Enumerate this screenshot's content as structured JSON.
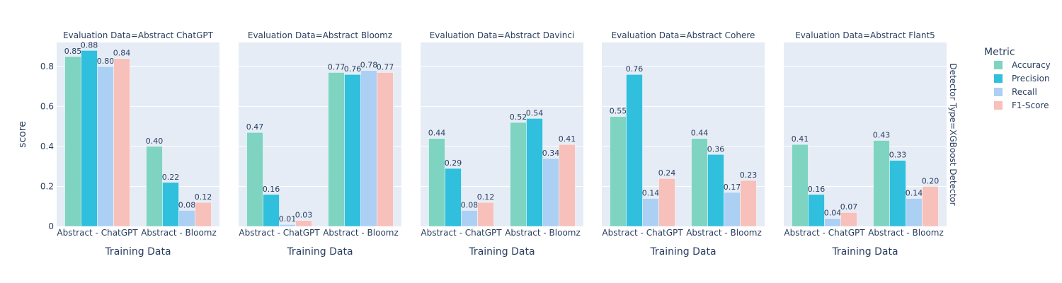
{
  "chart_data": {
    "type": "bar",
    "ylabel": "score",
    "xlabel": "Training Data",
    "ylim": [
      0,
      0.92
    ],
    "yticks": [
      0,
      0.2,
      0.4,
      0.6,
      0.8
    ],
    "ytick_labels": [
      "0",
      "0.2",
      "0.4",
      "0.6",
      "0.8"
    ],
    "grid": true,
    "categories": [
      "Abstract - ChatGPT",
      "Abstract - Bloomz"
    ],
    "row_label": "Detector Type=XGBoost Detector",
    "legend": {
      "title": "Metric",
      "placement": "right",
      "items": [
        {
          "name": "Accuracy",
          "color": "#7fd4c1"
        },
        {
          "name": "Precision",
          "color": "#30bfdd"
        },
        {
          "name": "Recall",
          "color": "#acd0f4"
        },
        {
          "name": "F1-Score",
          "color": "#f7c0bb"
        }
      ]
    },
    "facets": [
      {
        "title": "Evaluation Data=Abstract ChatGPT",
        "values": [
          [
            0.85,
            0.88,
            0.8,
            0.84
          ],
          [
            0.4,
            0.22,
            0.08,
            0.12
          ]
        ],
        "labels": [
          [
            "0.85",
            "0.88",
            "0.80",
            "0.84"
          ],
          [
            "0.40",
            "0.22",
            "0.08",
            "0.12"
          ]
        ]
      },
      {
        "title": "Evaluation Data=Abstract Bloomz",
        "values": [
          [
            0.47,
            0.16,
            0.01,
            0.03
          ],
          [
            0.77,
            0.76,
            0.78,
            0.77
          ]
        ],
        "labels": [
          [
            "0.47",
            "0.16",
            "0.01",
            "0.03"
          ],
          [
            "0.77",
            "0.76",
            "0.78",
            "0.77"
          ]
        ]
      },
      {
        "title": "Evaluation Data=Abstract Davinci",
        "values": [
          [
            0.44,
            0.29,
            0.08,
            0.12
          ],
          [
            0.52,
            0.54,
            0.34,
            0.41
          ]
        ],
        "labels": [
          [
            "0.44",
            "0.29",
            "0.08",
            "0.12"
          ],
          [
            "0.52",
            "0.54",
            "0.34",
            "0.41"
          ]
        ]
      },
      {
        "title": "Evaluation Data=Abstract Cohere",
        "values": [
          [
            0.55,
            0.76,
            0.14,
            0.24
          ],
          [
            0.44,
            0.36,
            0.17,
            0.23
          ]
        ],
        "labels": [
          [
            "0.55",
            "0.76",
            "0.14",
            "0.24"
          ],
          [
            "0.44",
            "0.36",
            "0.17",
            "0.23"
          ]
        ]
      },
      {
        "title": "Evaluation Data=Abstract Flant5",
        "values": [
          [
            0.41,
            0.16,
            0.04,
            0.07
          ],
          [
            0.43,
            0.33,
            0.14,
            0.2
          ]
        ],
        "labels": [
          [
            "0.41",
            "0.16",
            "0.04",
            "0.07"
          ],
          [
            "0.43",
            "0.33",
            "0.14",
            "0.20"
          ]
        ]
      }
    ]
  }
}
